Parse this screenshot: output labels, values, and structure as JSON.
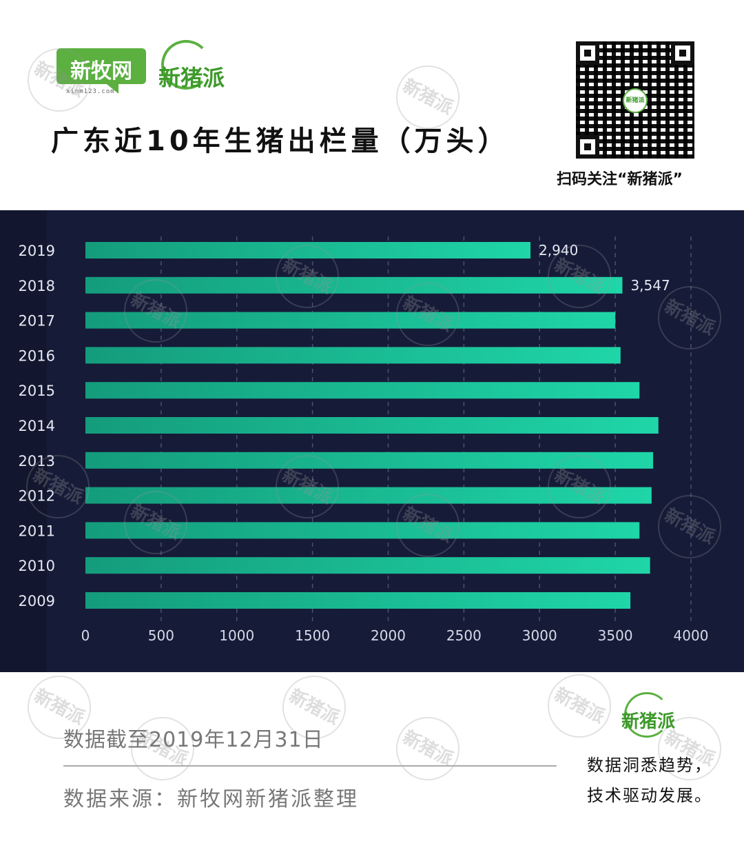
{
  "header": {
    "logo_xinmu": "新牧网",
    "logo_xinmu_url": "xinm123.com",
    "logo_xinzhu": "新猪派",
    "title": "广东近10年生猪出栏量（万头）"
  },
  "qr": {
    "center_label": "新猪派",
    "caption": "扫码关注“新猪派”"
  },
  "chart_data": {
    "type": "bar",
    "orientation": "horizontal",
    "categories": [
      "2019",
      "2018",
      "2017",
      "2016",
      "2015",
      "2014",
      "2013",
      "2012",
      "2011",
      "2010",
      "2009"
    ],
    "values": [
      2940,
      3547,
      3500,
      3535,
      3660,
      3785,
      3750,
      3740,
      3660,
      3730,
      3600
    ],
    "data_labels": {
      "2019": "2,940",
      "2018": "3,547"
    },
    "xlim": [
      0,
      4000
    ],
    "x_ticks": [
      "0",
      "500",
      "1000",
      "1500",
      "2000",
      "2500",
      "3000",
      "3500",
      "4000"
    ],
    "grid": "vertical-dashed",
    "bar_color": "#1fd6a8",
    "bar_color_dark": "#149c7c",
    "background": "#161b38"
  },
  "watermark_text": "新猪派",
  "footer": {
    "cutoff_note": "数据截至2019年12月31日",
    "source_note": "数据来源：新牧网新猪派整理",
    "logo": "新猪派",
    "slogan_line1": "数据洞悉趋势，",
    "slogan_line2": "技术驱动发展。"
  }
}
